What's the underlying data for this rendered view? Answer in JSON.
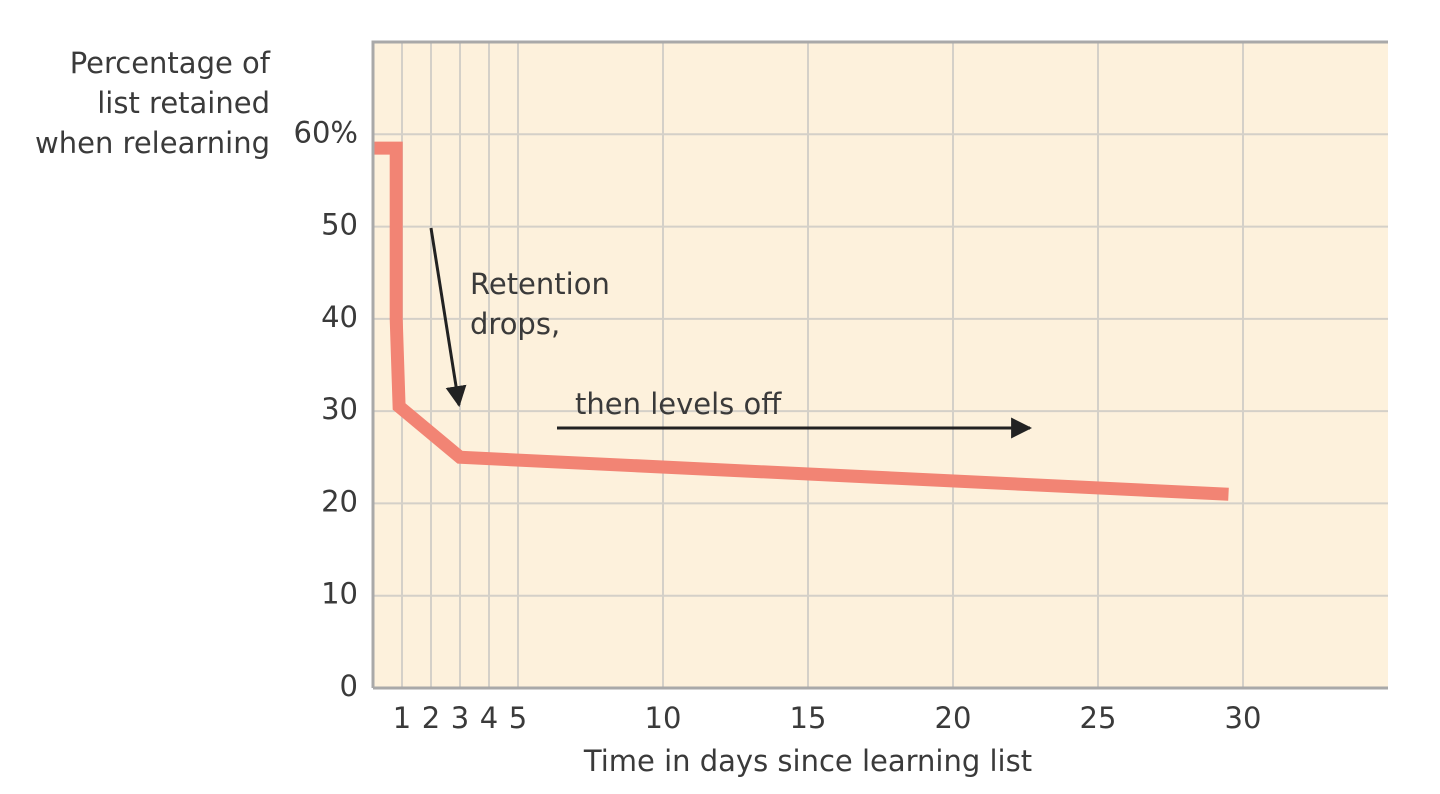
{
  "chart_data": {
    "type": "line",
    "y_label_lines": [
      "Percentage of",
      "list retained",
      "when relearning"
    ],
    "x_label": "Time in days since learning list",
    "annotations": [
      [
        "Retention",
        "drops,"
      ],
      [
        "then levels off"
      ]
    ],
    "x": [
      0,
      0.8,
      0.8,
      0.9,
      3,
      29.5
    ],
    "series": [
      {
        "name": "Retention",
        "color": "#f28474",
        "values": [
          58.5,
          58.5,
          40,
          30.5,
          25,
          21
        ]
      }
    ],
    "xlim": [
      0,
      35
    ],
    "ylim": [
      0,
      70
    ],
    "xticks": [
      1,
      2,
      3,
      4,
      5,
      10,
      15,
      20,
      25,
      30
    ],
    "yticks": [
      0,
      10,
      20,
      30,
      40,
      50,
      {
        "value": 60,
        "label": "60%"
      }
    ],
    "grid": true,
    "background": "#fdf1dc"
  }
}
